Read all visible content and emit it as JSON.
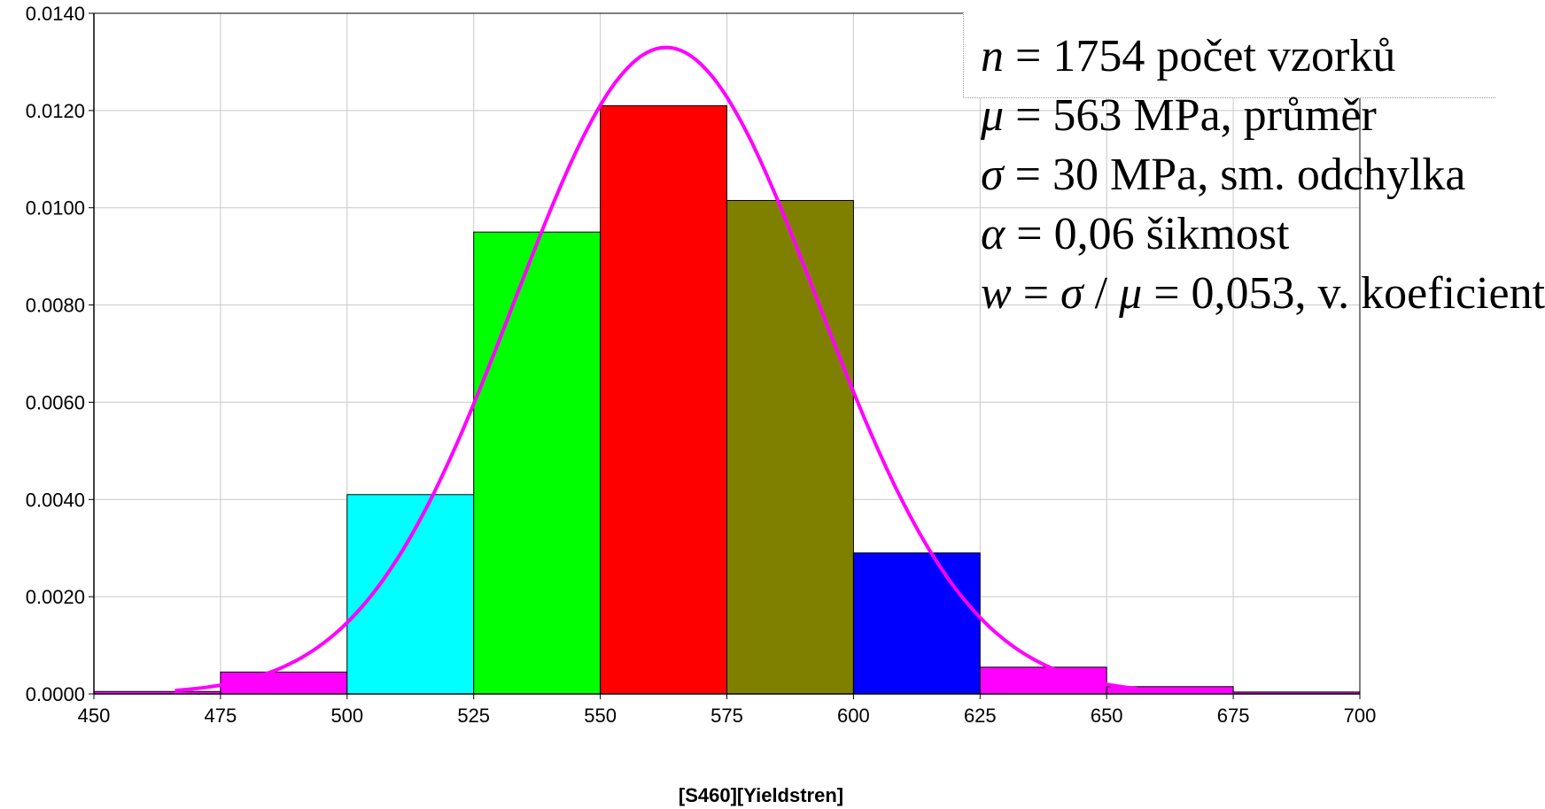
{
  "chart_data": {
    "type": "bar",
    "xlabel": "[S460][Yieldstren]",
    "ylabel": "",
    "xlim": [
      450,
      700
    ],
    "ylim": [
      0,
      0.014
    ],
    "x_ticks": [
      "450",
      "475",
      "500",
      "525",
      "550",
      "575",
      "600",
      "625",
      "650",
      "675",
      "700"
    ],
    "y_ticks": [
      "0.0000",
      "0.0020",
      "0.0040",
      "0.0060",
      "0.0080",
      "0.0100",
      "0.0120",
      "0.0140"
    ],
    "grid": true,
    "bins": [
      {
        "x0": 450,
        "x1": 475,
        "value": 5e-05,
        "color": "#ff00ff"
      },
      {
        "x0": 475,
        "x1": 500,
        "value": 0.00045,
        "color": "#ff00ff"
      },
      {
        "x0": 500,
        "x1": 525,
        "value": 0.0041,
        "color": "#00ffff"
      },
      {
        "x0": 525,
        "x1": 550,
        "value": 0.0095,
        "color": "#00ff00"
      },
      {
        "x0": 550,
        "x1": 575,
        "value": 0.0121,
        "color": "#ff0000"
      },
      {
        "x0": 575,
        "x1": 600,
        "value": 0.01015,
        "color": "#808000"
      },
      {
        "x0": 600,
        "x1": 625,
        "value": 0.0029,
        "color": "#0000ff"
      },
      {
        "x0": 625,
        "x1": 650,
        "value": 0.00055,
        "color": "#ff00ff"
      },
      {
        "x0": 650,
        "x1": 675,
        "value": 0.00015,
        "color": "#ff00ff"
      },
      {
        "x0": 675,
        "x1": 700,
        "value": 4e-05,
        "color": "#ff00ff"
      }
    ],
    "fit_curve": {
      "color": "#ff00ff",
      "mean": 563,
      "sd": 30,
      "x_start": 466,
      "x_end": 656
    }
  },
  "stats": {
    "n_sym": "n",
    "n_text": " = 1754 počet vzorků",
    "mu_sym": "μ",
    "mu_text": " = 563 MPa, průměr",
    "sigma_sym": "σ",
    "sigma_text": " =   30 MPa, sm. odchylka",
    "alpha_sym": "α",
    "alpha_text": " =  0,06 šikmost",
    "w_sym": "w",
    "w_eq": " = ",
    "w_sigma": "σ",
    "w_slash": " / ",
    "w_mu": "μ",
    "w_text": " =  0,053, v. koeficient"
  }
}
